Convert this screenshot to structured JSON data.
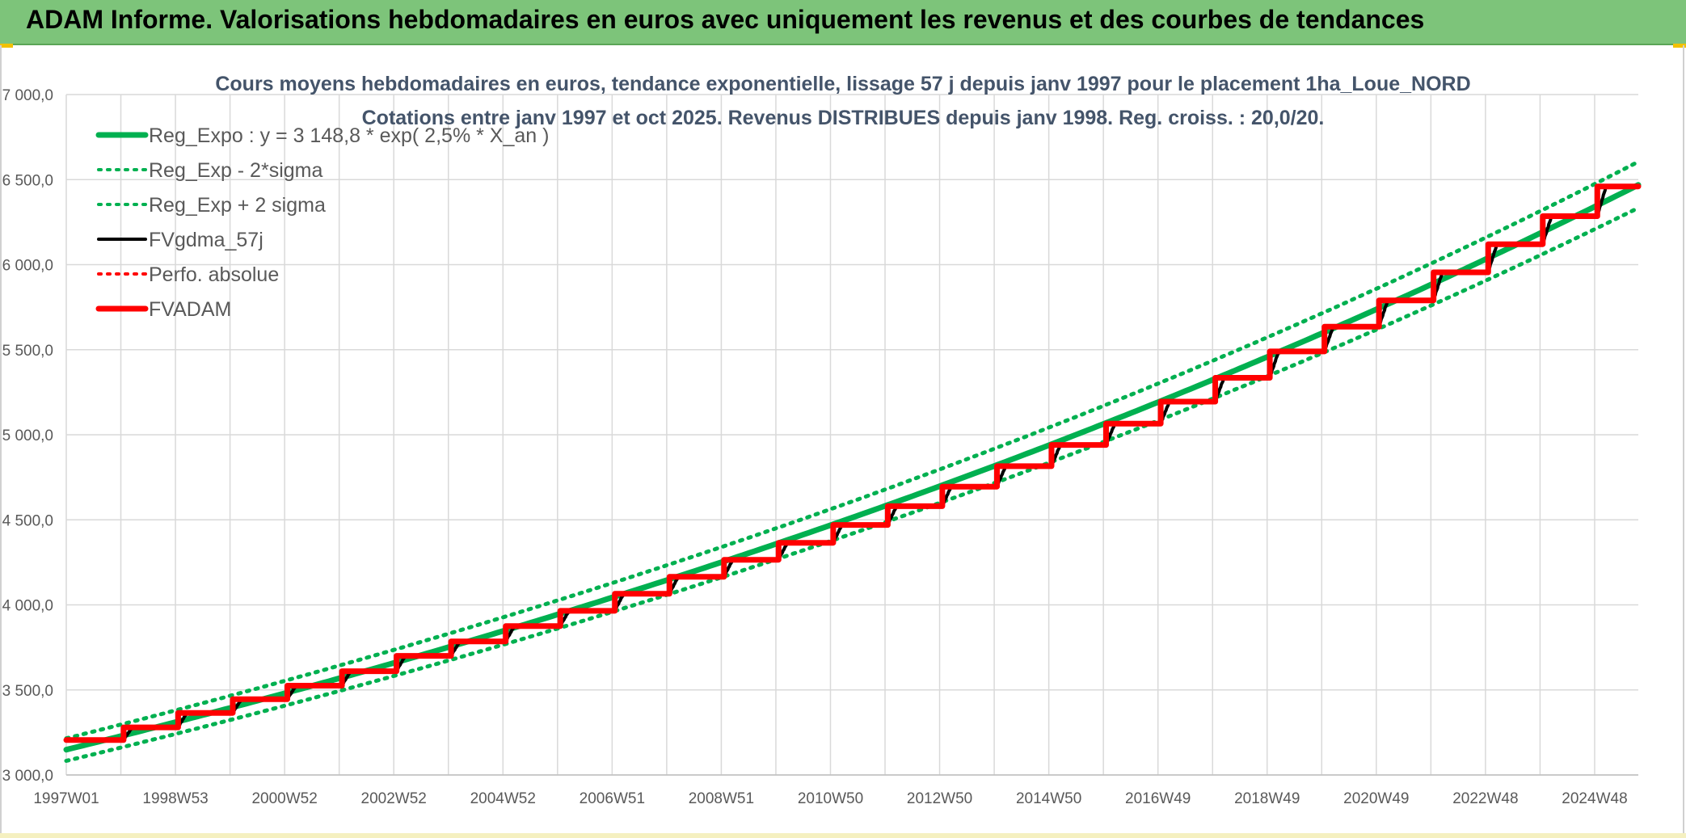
{
  "banner": {
    "title": "ADAM Informe. Valorisations hebdomadaires en euros avec uniquement les revenus et des courbes de tendances"
  },
  "colors": {
    "banner_bg": "#7dc47a",
    "green": "#00b050",
    "red": "#ff0000",
    "black": "#000000",
    "grid": "#d9d9d9",
    "title_text": "#44546a",
    "axis_text": "#595959"
  },
  "chart_data": {
    "type": "line",
    "title_line1": "Cours moyens hebdomadaires en euros, tendance exponentielle, lissage 57 j depuis janv 1997 pour le placement 1ha_Loue_NORD",
    "title_line2": "Cotations entre janv 1997 et oct 2025. Revenus DISTRIBUES depuis janv 1998. Reg. croiss. : 20,0/20.",
    "x_range_years": [
      1997.0,
      2025.8
    ],
    "x_tick_labels": [
      "1997W01",
      "1998W53",
      "2000W52",
      "2002W52",
      "2004W52",
      "2006W51",
      "2008W51",
      "2010W50",
      "2012W50",
      "2014W50",
      "2016W49",
      "2018W49",
      "2020W49",
      "2022W48",
      "2024W48"
    ],
    "ylim": [
      3000,
      7000
    ],
    "y_ticks": [
      3000,
      3500,
      4000,
      4500,
      5000,
      5500,
      6000,
      6500,
      7000
    ],
    "y_tick_labels": [
      "3 000,0",
      "3 500,0",
      "4 000,0",
      "4 500,0",
      "5 000,0",
      "5 500,0",
      "6 000,0",
      "6 500,0",
      "7 000,0"
    ],
    "grid": true,
    "legend_position": "top-left",
    "series": [
      {
        "name": "Reg_Expo : y = 3 148,8 * exp( 2,5% *  X_an )",
        "kind": "exp",
        "a": 3148.8,
        "rate": 0.025,
        "color": "#00b050",
        "style": "solid-thick"
      },
      {
        "name": "Reg_Exp - 2*sigma",
        "kind": "exp",
        "a": 3083,
        "rate": 0.025,
        "color": "#00b050",
        "style": "dotted"
      },
      {
        "name": "Reg_Exp + 2 sigma",
        "kind": "exp",
        "a": 3215,
        "rate": 0.025,
        "color": "#00b050",
        "style": "dotted"
      },
      {
        "name": "FVgdma_57j",
        "kind": "smooth-steps",
        "color": "#000000",
        "style": "solid"
      },
      {
        "name": "Perfo. absolue",
        "kind": "steps",
        "color": "#ff0000",
        "style": "dotted"
      },
      {
        "name": "FVADAM",
        "kind": "steps",
        "color": "#ff0000",
        "style": "solid-thick"
      }
    ],
    "fvadam_steps": [
      {
        "from": 1997.0,
        "value": 3205
      },
      {
        "from": 1998.05,
        "value": 3280
      },
      {
        "from": 1999.05,
        "value": 3365
      },
      {
        "from": 2000.05,
        "value": 3445
      },
      {
        "from": 2001.05,
        "value": 3525
      },
      {
        "from": 2002.05,
        "value": 3610
      },
      {
        "from": 2003.05,
        "value": 3700
      },
      {
        "from": 2004.05,
        "value": 3785
      },
      {
        "from": 2005.05,
        "value": 3875
      },
      {
        "from": 2006.05,
        "value": 3965
      },
      {
        "from": 2007.05,
        "value": 4065
      },
      {
        "from": 2008.05,
        "value": 4165
      },
      {
        "from": 2009.05,
        "value": 4265
      },
      {
        "from": 2010.05,
        "value": 4365
      },
      {
        "from": 2011.05,
        "value": 4470
      },
      {
        "from": 2012.05,
        "value": 4580
      },
      {
        "from": 2013.05,
        "value": 4695
      },
      {
        "from": 2014.05,
        "value": 4815
      },
      {
        "from": 2015.05,
        "value": 4940
      },
      {
        "from": 2016.05,
        "value": 5065
      },
      {
        "from": 2017.05,
        "value": 5195
      },
      {
        "from": 2018.05,
        "value": 5335
      },
      {
        "from": 2019.05,
        "value": 5490
      },
      {
        "from": 2020.05,
        "value": 5635
      },
      {
        "from": 2021.05,
        "value": 5790
      },
      {
        "from": 2022.05,
        "value": 5955
      },
      {
        "from": 2023.05,
        "value": 6120
      },
      {
        "from": 2024.05,
        "value": 6285
      },
      {
        "from": 2025.05,
        "value": 6460
      }
    ]
  }
}
